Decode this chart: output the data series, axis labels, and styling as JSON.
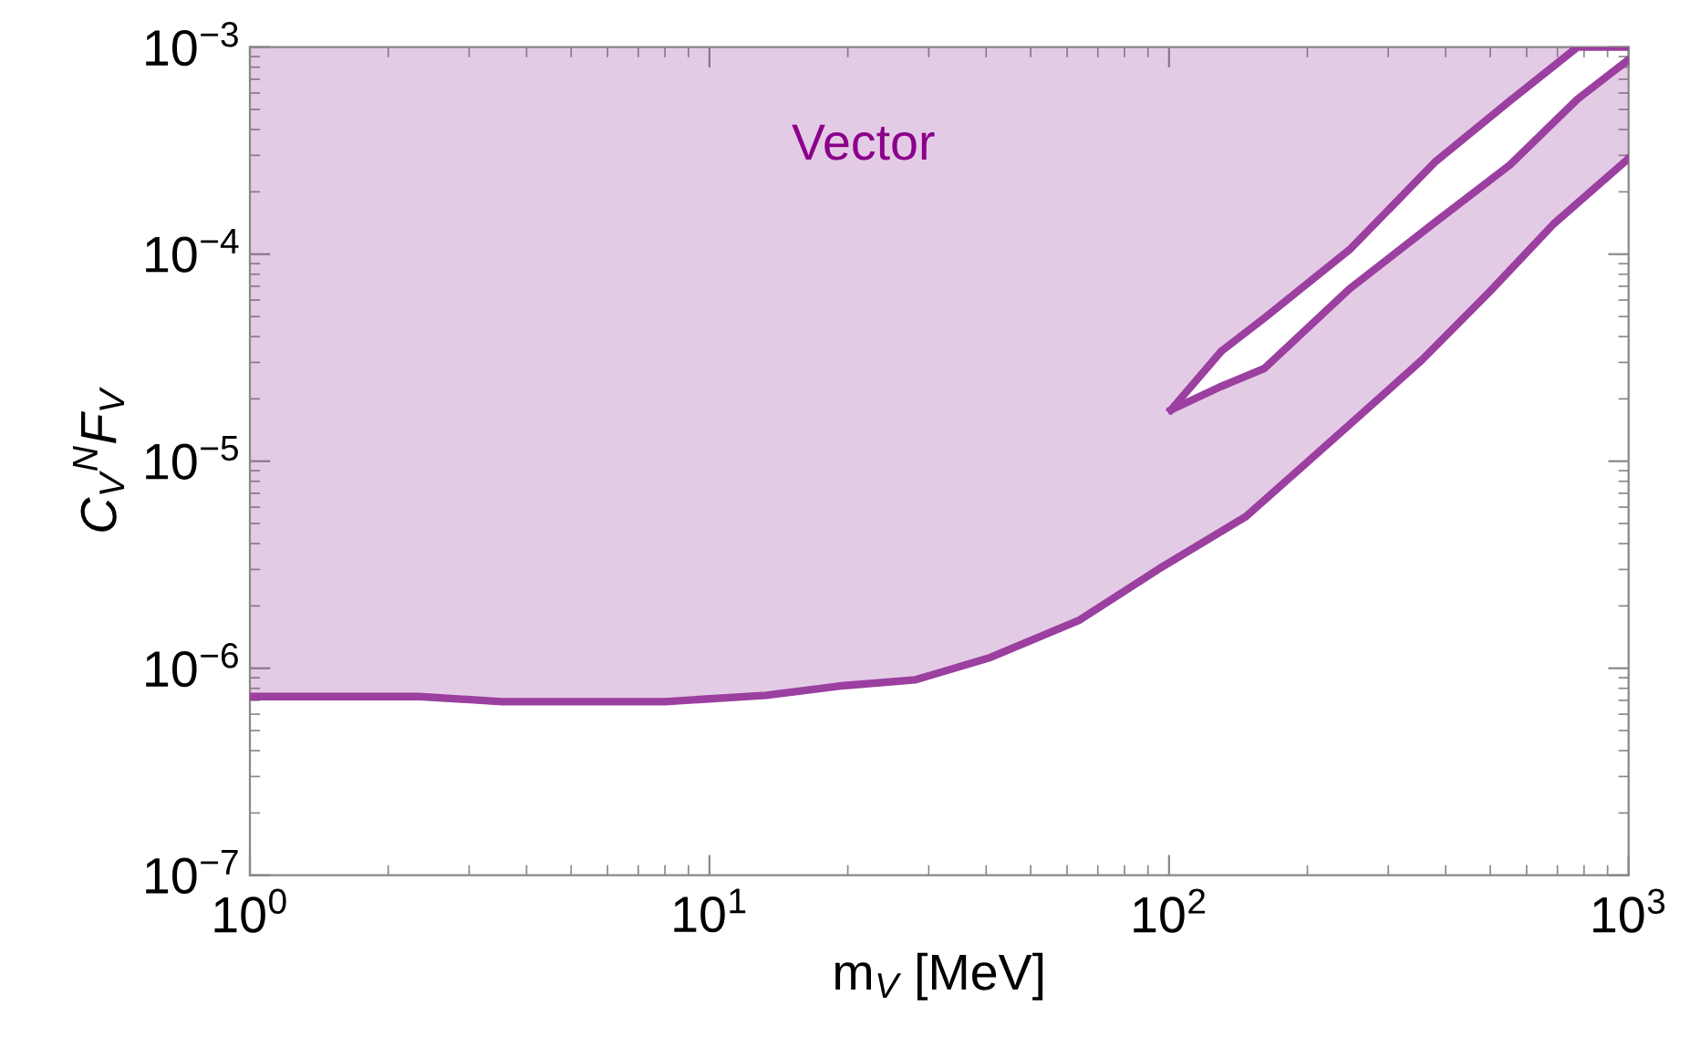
{
  "chart_data": {
    "type": "line",
    "xlabel": "m$_{V}$ [MeV]",
    "ylabel": "C$_{V}$$^{N}$F$_{V}$",
    "log": "xy",
    "xlim": [
      1,
      1000
    ],
    "ylim": [
      1e-07,
      0.001
    ],
    "xticks": [
      {
        "value": 1,
        "label": "10$^{0}$"
      },
      {
        "value": 10,
        "label": "10$^{1}$"
      },
      {
        "value": 100,
        "label": "10$^{2}$"
      },
      {
        "value": 1000,
        "label": "10$^{3}$"
      }
    ],
    "yticks": [
      {
        "value": 1e-07,
        "label": "10$^{−7}$"
      },
      {
        "value": 1e-06,
        "label": "10$^{−6}$"
      },
      {
        "value": 1e-05,
        "label": "10$^{−5}$"
      },
      {
        "value": 0.0001,
        "label": "10$^{−4}$"
      },
      {
        "value": 0.001,
        "label": "10$^{−3}$"
      }
    ],
    "grid": false,
    "marker": "none",
    "line_style": "solid",
    "annotations": [
      "Vector"
    ],
    "series": [
      {
        "color": "#9b3fa0",
        "x": [
          1,
          2.34,
          3.53,
          8.0,
          13.3,
          19.1,
          28.1,
          40.5,
          63.9,
          94.6,
          147,
          247,
          356,
          499,
          687,
          1000
        ],
        "values": [
          7.3e-07,
          7.3e-07,
          6.9e-07,
          6.9e-07,
          7.4e-07,
          8.2e-07,
          8.8e-07,
          1.12e-06,
          1.71e-06,
          3e-06,
          5.4e-06,
          1.5e-05,
          3.1e-05,
          6.6e-05,
          0.00014,
          0.00029
        ],
        "lower": [
          7.3e-07,
          7.3e-07,
          6.9e-07,
          6.9e-07,
          7.4e-07,
          8.2e-07,
          8.8e-07,
          1.12e-06,
          1.71e-06,
          3e-06,
          5.4e-06,
          1.5e-05,
          3.1e-05,
          6.6e-05,
          0.00014,
          0.00029
        ],
        "upper": [
          0.001,
          0.001,
          0.001,
          0.001,
          0.001,
          0.001,
          0.001,
          0.001,
          0.001,
          0.001,
          0.001,
          0.001,
          0.001,
          0.001,
          0.001,
          0.001
        ]
      },
      {
        "color": "#9b3fa0",
        "x": [
          101,
          130,
          161,
          247,
          380,
          552,
          774,
          1000
        ],
        "values": [
          1.77e-05,
          2.3e-05,
          2.8e-05,
          6.8e-05,
          0.000143,
          0.00027,
          0.00056,
          0.00087
        ],
        "lower": [
          1.77e-05,
          2.3e-05,
          2.8e-05,
          6.8e-05,
          0.000143,
          0.00027,
          0.00056,
          0.00087
        ],
        "upper": [
          1.77e-05,
          3.4e-05,
          4.9e-05,
          0.000105,
          0.00028,
          0.00055,
          0.001,
          0.001
        ]
      },
      {
        "color": "#9b3fa0",
        "x": [
          101,
          130,
          161,
          247,
          380,
          552,
          774,
          1000
        ],
        "values": [
          1.77e-05,
          3.4e-05,
          4.9e-05,
          0.000105,
          0.00028,
          0.00055,
          0.001,
          0.001
        ]
      }
    ]
  }
}
